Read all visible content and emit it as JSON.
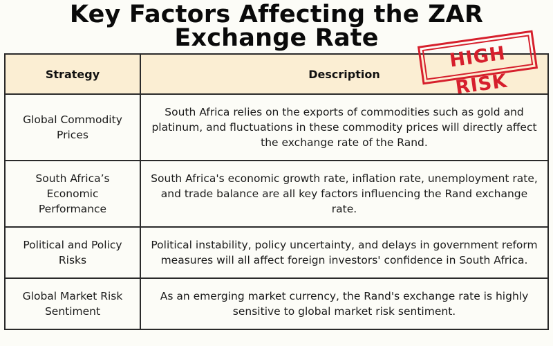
{
  "title": {
    "line1": "Key Factors Affecting the ZAR",
    "line2": "Exchange Rate"
  },
  "stamp": {
    "label": "HIGH RISK",
    "color": "#d61f2c"
  },
  "table": {
    "headers": [
      "Strategy",
      "Description"
    ],
    "header_bg": "#fbeed3",
    "rows": [
      {
        "strategy": "Global Commodity Prices",
        "description": "South Africa relies on the exports of commodities such as gold and platinum, and fluctuations in these commodity prices will directly affect the exchange rate of the Rand."
      },
      {
        "strategy": "South Africa’s Economic Performance",
        "description": "South Africa's economic growth rate, inflation rate, unemployment rate, and trade balance are all key factors influencing the Rand exchange rate."
      },
      {
        "strategy": "Political and Policy Risks",
        "description": "Political instability, policy uncertainty, and delays in government reform measures will all affect foreign investors' confidence in South Africa."
      },
      {
        "strategy": "Global Market Risk Sentiment",
        "description": "As an emerging market currency, the Rand's exchange rate is highly sensitive to global market risk sentiment."
      }
    ]
  }
}
